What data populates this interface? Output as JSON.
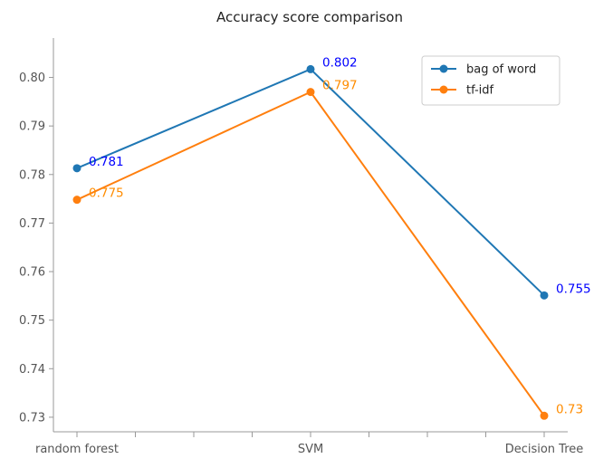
{
  "chart_data": {
    "type": "line",
    "title": "Accuracy score comparison",
    "xlabel": "",
    "ylabel": "",
    "categories": [
      "random forest",
      "SVM",
      "Decision Tree"
    ],
    "ylim": [
      0.727,
      0.807
    ],
    "yticks": [
      "0.73",
      "0.74",
      "0.75",
      "0.76",
      "0.77",
      "0.78",
      "0.79",
      "0.80"
    ],
    "grid": false,
    "legend_position": "top-right",
    "series": [
      {
        "name": "bag of word",
        "color": "#1f77b4",
        "label_color": "#0000ff",
        "values": [
          0.7813,
          0.8017,
          0.7551
        ],
        "labels": [
          "0.781",
          "0.802",
          "0.755"
        ]
      },
      {
        "name": "tf-idf",
        "color": "#ff7f0e",
        "label_color": "#ff8c00",
        "values": [
          0.7748,
          0.797,
          0.7303
        ],
        "labels": [
          "0.775",
          "0.797",
          "0.73"
        ]
      }
    ]
  }
}
